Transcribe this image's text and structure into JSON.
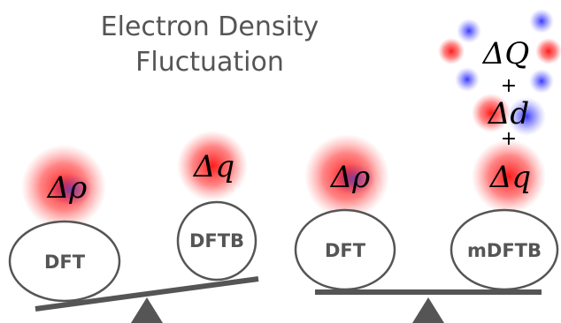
{
  "title": {
    "lines": [
      "Electron Density",
      "Fluctuation"
    ]
  },
  "left": {
    "blobs": [
      "Δρ",
      "Δq"
    ],
    "nodes": [
      "DFT",
      "DFTB"
    ]
  },
  "right": {
    "blobs": [
      "Δρ",
      "Δq"
    ],
    "nodes": [
      "DFT",
      "mDFTB"
    ],
    "terms": [
      "ΔQ",
      "+",
      "Δd",
      "+"
    ]
  }
}
